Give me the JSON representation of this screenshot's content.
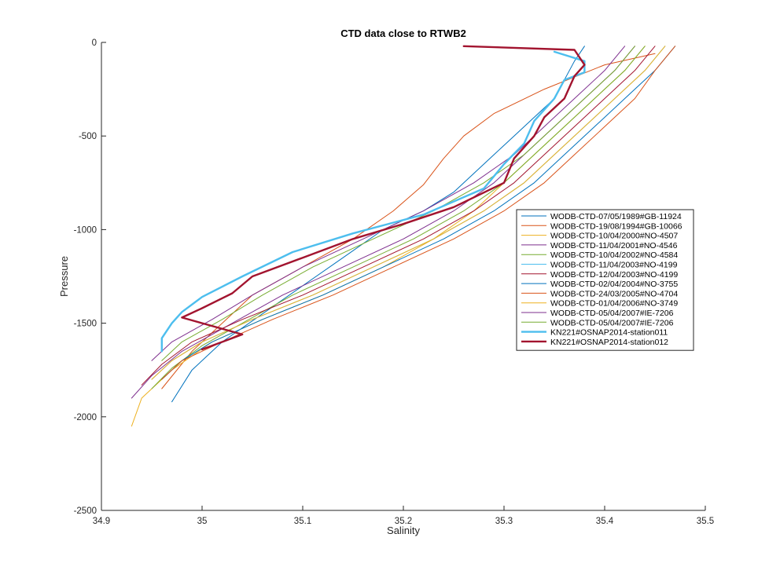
{
  "chart_data": {
    "type": "line",
    "title": "CTD data close to RTWB2",
    "xlabel": "Salinity",
    "ylabel": "Pressure",
    "xlim": [
      34.9,
      35.5
    ],
    "ylim": [
      -2500,
      0
    ],
    "xticks": [
      "34.9",
      "35",
      "35.1",
      "35.2",
      "35.3",
      "35.4",
      "35.5"
    ],
    "yticks": [
      "0",
      "-500",
      "-1000",
      "-1500",
      "-2000",
      "-2500"
    ],
    "grid": false,
    "legend_position": "right",
    "series": [
      {
        "name": "WODB-CTD-07/05/1989#GB-11924",
        "color": "#0072bd",
        "width": 1,
        "x": [
          35.38,
          35.37,
          35.36,
          35.35,
          35.33,
          35.31,
          35.29,
          35.27,
          35.25,
          35.22,
          35.18,
          35.14,
          35.1,
          35.06,
          35.02,
          34.99,
          34.97
        ],
        "y": [
          -20,
          -100,
          -200,
          -300,
          -400,
          -500,
          -600,
          -700,
          -800,
          -900,
          -1000,
          -1150,
          -1300,
          -1450,
          -1600,
          -1750,
          -1920
        ]
      },
      {
        "name": "WODB-CTD-19/08/1994#GB-10066",
        "color": "#d95319",
        "width": 1,
        "x": [
          35.45,
          35.4,
          35.34,
          35.29,
          35.26,
          35.24,
          35.22,
          35.19,
          35.15,
          35.1,
          35.05,
          35.02,
          34.99,
          34.96
        ],
        "y": [
          -60,
          -120,
          -250,
          -380,
          -500,
          -620,
          -760,
          -900,
          -1050,
          -1200,
          -1350,
          -1500,
          -1650,
          -1850
        ]
      },
      {
        "name": "WODB-CTD-10/04/2000#NO-4507",
        "color": "#edb120",
        "width": 1,
        "x": [
          35.44,
          35.42,
          35.39,
          35.36,
          35.33,
          35.3,
          35.27,
          35.23,
          35.18,
          35.12,
          35.06,
          35.01,
          34.97,
          34.94,
          34.93
        ],
        "y": [
          -20,
          -150,
          -300,
          -450,
          -600,
          -750,
          -900,
          -1050,
          -1200,
          -1350,
          -1480,
          -1600,
          -1750,
          -1900,
          -2050
        ]
      },
      {
        "name": "WODB-CTD-11/04/2001#NO-4546",
        "color": "#7e2f8e",
        "width": 1,
        "x": [
          35.43,
          35.41,
          35.38,
          35.35,
          35.32,
          35.29,
          35.25,
          35.2,
          35.14,
          35.08,
          35.03,
          34.98,
          34.95,
          34.93
        ],
        "y": [
          -20,
          -150,
          -300,
          -450,
          -600,
          -750,
          -900,
          -1050,
          -1200,
          -1350,
          -1500,
          -1650,
          -1780,
          -1900
        ]
      },
      {
        "name": "WODB-CTD-10/04/2002#NO-4584",
        "color": "#77ac30",
        "width": 1,
        "x": [
          35.44,
          35.42,
          35.39,
          35.36,
          35.33,
          35.3,
          35.26,
          35.21,
          35.15,
          35.09,
          35.04,
          35.0,
          34.97,
          34.95
        ],
        "y": [
          -20,
          -150,
          -300,
          -450,
          -600,
          -750,
          -900,
          -1050,
          -1200,
          -1350,
          -1500,
          -1620,
          -1740,
          -1850
        ]
      },
      {
        "name": "WODB-CTD-11/04/2003#NO-4199",
        "color": "#4dbeee",
        "width": 1,
        "x": [
          35.46,
          35.44,
          35.41,
          35.38,
          35.35,
          35.32,
          35.28,
          35.23,
          35.17,
          35.11,
          35.05,
          35.0,
          34.97,
          34.95
        ],
        "y": [
          -20,
          -150,
          -300,
          -450,
          -600,
          -750,
          -900,
          -1050,
          -1200,
          -1350,
          -1480,
          -1600,
          -1700,
          -1800
        ]
      },
      {
        "name": "WODB-CTD-12/04/2003#NO-4199",
        "color": "#a2142f",
        "width": 1,
        "x": [
          35.45,
          35.43,
          35.4,
          35.37,
          35.34,
          35.31,
          35.27,
          35.22,
          35.16,
          35.1,
          35.04,
          34.99,
          34.96,
          34.94
        ],
        "y": [
          -20,
          -150,
          -300,
          -450,
          -600,
          -750,
          -900,
          -1050,
          -1200,
          -1350,
          -1480,
          -1600,
          -1720,
          -1830
        ]
      },
      {
        "name": "WODB-CTD-02/04/2004#NO-3755",
        "color": "#0072bd",
        "width": 1,
        "x": [
          35.47,
          35.45,
          35.42,
          35.39,
          35.36,
          35.33,
          35.29,
          35.24,
          35.18,
          35.12,
          35.06,
          35.01,
          34.98,
          34.96
        ],
        "y": [
          -20,
          -150,
          -300,
          -450,
          -600,
          -750,
          -900,
          -1050,
          -1200,
          -1350,
          -1480,
          -1600,
          -1700,
          -1800
        ]
      },
      {
        "name": "WODB-CTD-24/03/2005#NO-4704",
        "color": "#d95319",
        "width": 1,
        "x": [
          35.47,
          35.45,
          35.43,
          35.4,
          35.37,
          35.34,
          35.3,
          35.25,
          35.19,
          35.13,
          35.07,
          35.02,
          34.98,
          34.96
        ],
        "y": [
          -20,
          -150,
          -300,
          -450,
          -600,
          -750,
          -900,
          -1050,
          -1200,
          -1350,
          -1480,
          -1600,
          -1700,
          -1800
        ]
      },
      {
        "name": "WODB-CTD-01/04/2006#NO-3749",
        "color": "#edb120",
        "width": 1,
        "x": [
          35.46,
          35.44,
          35.41,
          35.38,
          35.35,
          35.32,
          35.28,
          35.23,
          35.17,
          35.11,
          35.05,
          35.0,
          34.97,
          34.95
        ],
        "y": [
          -20,
          -150,
          -300,
          -450,
          -600,
          -750,
          -900,
          -1050,
          -1200,
          -1350,
          -1480,
          -1600,
          -1700,
          -1800
        ]
      },
      {
        "name": "WODB-CTD-05/04/2007#IE-7206",
        "color": "#7e2f8e",
        "width": 1,
        "x": [
          35.42,
          35.4,
          35.37,
          35.34,
          35.31,
          35.27,
          35.22,
          35.16,
          35.1,
          35.05,
          35.01,
          34.97,
          34.95
        ],
        "y": [
          -20,
          -150,
          -300,
          -450,
          -600,
          -750,
          -900,
          -1050,
          -1200,
          -1350,
          -1480,
          -1600,
          -1700
        ]
      },
      {
        "name": "WODB-CTD-05/04/2007#IE-7206",
        "color": "#77ac30",
        "width": 1,
        "x": [
          35.43,
          35.41,
          35.38,
          35.35,
          35.32,
          35.28,
          35.23,
          35.17,
          35.11,
          35.06,
          35.02,
          34.98,
          34.96
        ],
        "y": [
          -20,
          -150,
          -300,
          -450,
          -600,
          -750,
          -900,
          -1050,
          -1200,
          -1350,
          -1480,
          -1600,
          -1700
        ]
      },
      {
        "name": "KN221#OSNAP2014-station011",
        "color": "#4dbeee",
        "width": 2.4,
        "x": [
          35.35,
          35.38,
          35.38,
          35.36,
          35.35,
          35.33,
          35.32,
          35.3,
          35.28,
          35.22,
          35.15,
          35.09,
          35.04,
          35.0,
          34.98,
          34.97,
          34.96,
          34.96
        ],
        "y": [
          -50,
          -100,
          -160,
          -200,
          -300,
          -420,
          -540,
          -650,
          -780,
          -920,
          -1020,
          -1120,
          -1250,
          -1360,
          -1440,
          -1500,
          -1580,
          -1650
        ]
      },
      {
        "name": "KN221#OSNAP2014-station012",
        "color": "#a2142f",
        "width": 2.4,
        "x": [
          35.26,
          35.37,
          35.38,
          35.37,
          35.36,
          35.34,
          35.33,
          35.31,
          35.3,
          35.25,
          35.2,
          35.15,
          35.1,
          35.05,
          35.03,
          35.0,
          34.98,
          35.04,
          35.0
        ],
        "y": [
          -20,
          -40,
          -120,
          -180,
          -300,
          -400,
          -500,
          -620,
          -750,
          -880,
          -970,
          -1050,
          -1150,
          -1250,
          -1340,
          -1420,
          -1470,
          -1560,
          -1640
        ]
      }
    ]
  }
}
